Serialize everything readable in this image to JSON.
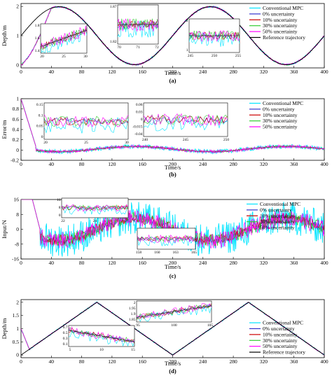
{
  "colors": {
    "conventional_mpc": "#00e5ff",
    "u0": "#3333cc",
    "u10": "#cc0000",
    "u30": "#33cc33",
    "u50": "#ff00ff",
    "reference": "#000000"
  },
  "chart_data": [
    {
      "type": "line",
      "panel_label": "(a)",
      "xlabel": "Time/s",
      "ylabel": "Depth/m",
      "xlim": [
        0,
        400
      ],
      "ylim": [
        -0.1,
        2.1
      ],
      "x_ticks": [
        "0",
        "40",
        "80",
        "120",
        "160",
        "200",
        "240",
        "280",
        "320",
        "360",
        "400"
      ],
      "y_ticks": [
        "0",
        "1",
        "2"
      ],
      "legend_position": "top-right",
      "series": [
        {
          "name": "Conventional MPC",
          "color_key": "conventional_mpc"
        },
        {
          "name": "0% uncertainty",
          "color_key": "u0"
        },
        {
          "name": "10% uncertainty",
          "color_key": "u10"
        },
        {
          "name": "30% uncertainty",
          "color_key": "u30"
        },
        {
          "name": "50% uncertainty",
          "color_key": "u50"
        },
        {
          "name": "Reference trajectory",
          "color_key": "reference"
        }
      ],
      "reference": {
        "function": "1 - cos(2*pi*t/200) offset 0.05",
        "x": [
          0,
          50,
          100,
          150,
          200,
          250,
          300,
          350,
          400
        ],
        "y": [
          1.0,
          1.99,
          1.0,
          0.01,
          1.0,
          1.99,
          1.0,
          0.01,
          1.0
        ]
      },
      "response": {
        "x": [
          0,
          20,
          50,
          100,
          150,
          200,
          250,
          300,
          350,
          400
        ],
        "y": [
          0,
          0.8,
          1.99,
          1.0,
          0.01,
          1.0,
          1.99,
          1.0,
          0.01,
          1.0
        ]
      },
      "insets": [
        {
          "x_ticks": [
            "20",
            "25",
            "30"
          ],
          "y_ticks": [
            "1.8",
            "1.6",
            "1.4"
          ]
        },
        {
          "x_ticks": [
            "70",
            "71",
            "72"
          ],
          "y_ticks": [
            "1.87",
            "1.82"
          ]
        },
        {
          "x_ticks": [
            "245",
            "250",
            "255"
          ],
          "y_ticks": [
            "2",
            "1"
          ]
        }
      ]
    },
    {
      "type": "line",
      "panel_label": "(b)",
      "xlabel": "Time/s",
      "ylabel": "Error/m",
      "xlim": [
        0,
        400
      ],
      "ylim": [
        -0.2,
        1.0
      ],
      "x_ticks": [
        "0",
        "40",
        "80",
        "120",
        "160",
        "200",
        "240",
        "280",
        "320",
        "360",
        "400"
      ],
      "y_ticks": [
        "1",
        "0.8",
        "0.6",
        "0.4",
        "0.2",
        "0",
        "-0.2"
      ],
      "legend_position": "top-right",
      "series": [
        {
          "name": "Conventional MPC",
          "color_key": "conventional_mpc"
        },
        {
          "name": "0% uncertainty",
          "color_key": "u0"
        },
        {
          "name": "10% uncertainty",
          "color_key": "u10"
        },
        {
          "name": "30% uncertainty",
          "color_key": "u30"
        },
        {
          "name": "50% uncertainty",
          "color_key": "u50"
        }
      ],
      "error_envelope": {
        "x": [
          0,
          20,
          60,
          100,
          150,
          200,
          250,
          300,
          350,
          400
        ],
        "y": [
          1.0,
          0.05,
          -0.05,
          0.0,
          0.05,
          0.0,
          0.0,
          -0.05,
          0.05,
          0.08
        ]
      },
      "insets": [
        {
          "x_ticks": [
            "20",
            "25",
            "30"
          ],
          "y_ticks": [
            "0.15",
            "0.1",
            "0.05",
            "0"
          ]
        },
        {
          "x_ticks": [
            "240",
            "245",
            "250"
          ],
          "y_ticks": [
            "0.06",
            "0.03",
            "0",
            "-0.015",
            "-0.04"
          ]
        }
      ]
    },
    {
      "type": "line",
      "panel_label": "(c)",
      "xlabel": "Time/s",
      "ylabel": "Input/N",
      "xlim": [
        0,
        400
      ],
      "ylim": [
        -16,
        16
      ],
      "x_ticks": [
        "0",
        "40",
        "80",
        "120",
        "160",
        "200",
        "240",
        "280",
        "320",
        "360",
        "400"
      ],
      "y_ticks": [
        "16",
        "8",
        "0",
        "-8",
        "-16"
      ],
      "legend_position": "top-right",
      "series": [
        {
          "name": "Conventional MPC",
          "color_key": "conventional_mpc"
        },
        {
          "name": "0% uncertainty",
          "color_key": "u0"
        },
        {
          "name": "10% uncertainty",
          "color_key": "u10"
        },
        {
          "name": "30% uncertainty",
          "color_key": "u30"
        },
        {
          "name": "50% uncertainty",
          "color_key": "u50"
        }
      ],
      "input_trend": {
        "x": [
          0,
          15,
          25,
          75,
          150,
          200,
          250,
          300,
          350,
          400
        ],
        "y": [
          16,
          16,
          0,
          -6,
          0,
          6,
          0,
          -6,
          0,
          6
        ]
      },
      "insets": [
        {
          "x_ticks": [
            "22",
            "24",
            "27"
          ],
          "y_ticks": [
            "16",
            "8",
            "0"
          ]
        },
        {
          "x_ticks": [
            "158",
            "160",
            "163",
            "165"
          ],
          "y_ticks": []
        }
      ]
    },
    {
      "type": "line",
      "panel_label": "(d)",
      "xlabel": "Time/s",
      "ylabel": "Depth/m",
      "xlim": [
        0,
        400
      ],
      "ylim": [
        -0.1,
        2.1
      ],
      "x_ticks": [
        "0",
        "40",
        "80",
        "120",
        "160",
        "200",
        "240",
        "280",
        "320",
        "360",
        "400"
      ],
      "y_ticks": [
        "0",
        "0.5",
        "1",
        "1.5",
        "2"
      ],
      "legend_position": "bottom-right",
      "series": [
        {
          "name": "Conventional MPC",
          "color_key": "conventional_mpc"
        },
        {
          "name": "0% uncertainty",
          "color_key": "u0"
        },
        {
          "name": "10% uncertainty",
          "color_key": "u10"
        },
        {
          "name": "30% uncertainty",
          "color_key": "u30"
        },
        {
          "name": "50% uncertainty",
          "color_key": "u50"
        },
        {
          "name": "Reference trajectory",
          "color_key": "reference"
        }
      ],
      "reference": {
        "x": [
          0,
          100,
          200,
          300,
          400
        ],
        "y": [
          0,
          2,
          0,
          2,
          0
        ]
      },
      "response": {
        "x": [
          0,
          10,
          100,
          200,
          300,
          400
        ],
        "y": [
          1.0,
          0.2,
          2,
          0,
          2,
          0
        ]
      },
      "insets": [
        {
          "x_ticks": [
            "5",
            "10",
            "15"
          ],
          "y_ticks": [
            "0.7",
            "0.5",
            "0.3",
            "0.1"
          ]
        },
        {
          "x_ticks": [
            "95",
            "100",
            "105"
          ],
          "y_ticks": [
            "2",
            "1.95",
            "1.9",
            "1.85"
          ]
        }
      ]
    }
  ]
}
